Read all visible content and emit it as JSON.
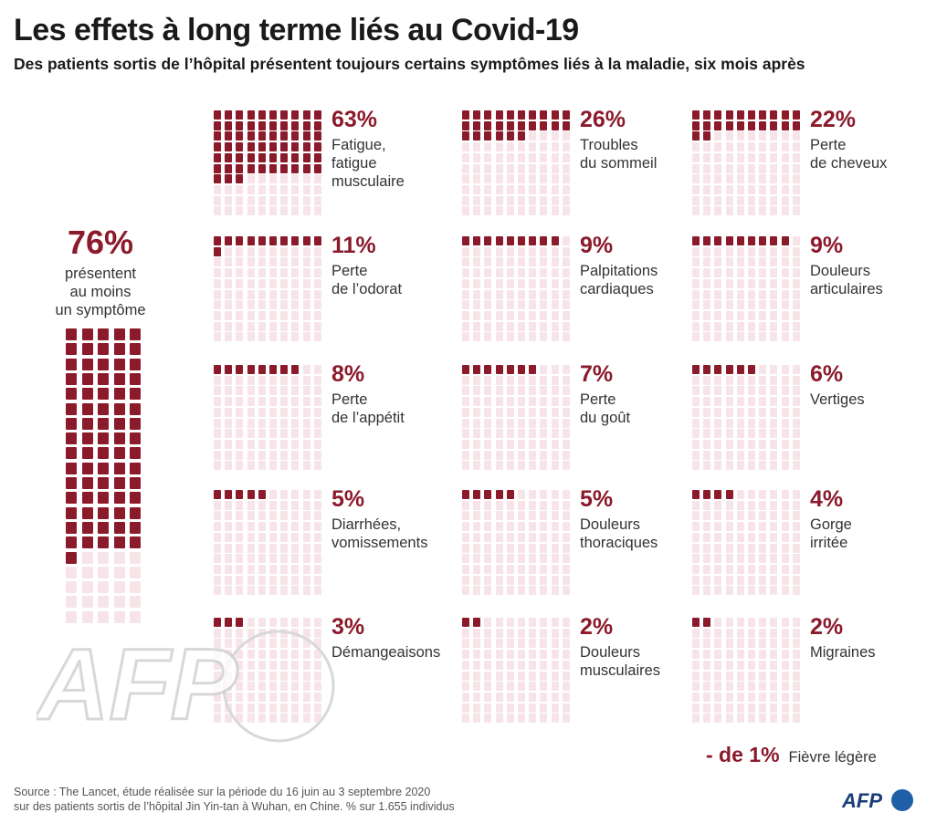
{
  "title": "Les effets à long terme liés au Covid-19",
  "subtitle": "Des patients sortis de l’hôpital présentent toujours certains symptômes liés à la maladie, six mois après",
  "summary": {
    "value": "76%",
    "label": "présentent\nau moins\nun symptôme"
  },
  "fever": {
    "value": "- de 1%",
    "label": "Fièvre légère"
  },
  "source": "Source : The Lancet, étude réalisée sur la période du 16 juin au 3 septembre 2020\nsur des patients sortis de l’hôpital Jin Yin-tan à Wuhan, en Chine. % sur 1.655 individus",
  "watermark_text": "AFP",
  "logo_text": "AFP",
  "colors": {
    "filled": "#8b1a2b",
    "empty": "#f7e4e8",
    "logo_blue": "#1f5fa8"
  },
  "panels": [
    {
      "value": "63%",
      "label": "Fatigue,\nfatigue\nmusculaire"
    },
    {
      "value": "26%",
      "label": "Troubles\ndu sommeil"
    },
    {
      "value": "22%",
      "label": "Perte\nde cheveux"
    },
    {
      "value": "11%",
      "label": "Perte\nde l’odorat"
    },
    {
      "value": "9%",
      "label": "Palpitations\ncardiaques"
    },
    {
      "value": "9%",
      "label": "Douleurs\narticulaires"
    },
    {
      "value": "8%",
      "label": "Perte\nde l’appétit"
    },
    {
      "value": "7%",
      "label": "Perte\ndu goût"
    },
    {
      "value": "6%",
      "label": "Vertiges"
    },
    {
      "value": "5%",
      "label": "Diarrhées,\nvomissements"
    },
    {
      "value": "5%",
      "label": "Douleurs\nthoraciques"
    },
    {
      "value": "4%",
      "label": "Gorge\nirritée"
    },
    {
      "value": "3%",
      "label": "Démangeaisons"
    },
    {
      "value": "2%",
      "label": "Douleurs\nmusculaires"
    },
    {
      "value": "2%",
      "label": "Migraines"
    }
  ],
  "chart_data": {
    "type": "waffle",
    "title": "Les effets à long terme liés au Covid-19",
    "unit": "%",
    "summary": {
      "category": "présentent au moins un symptôme",
      "value": 76
    },
    "categories": [
      "Fatigue, fatigue musculaire",
      "Troubles du sommeil",
      "Perte de cheveux",
      "Perte de l’odorat",
      "Palpitations cardiaques",
      "Douleurs articulaires",
      "Perte de l’appétit",
      "Perte du goût",
      "Vertiges",
      "Diarrhées, vomissements",
      "Douleurs thoraciques",
      "Gorge irritée",
      "Démangeaisons",
      "Douleurs musculaires",
      "Migraines",
      "Fièvre légère"
    ],
    "values": [
      63,
      26,
      22,
      11,
      9,
      9,
      8,
      7,
      6,
      5,
      5,
      4,
      3,
      2,
      2,
      0.5
    ]
  }
}
